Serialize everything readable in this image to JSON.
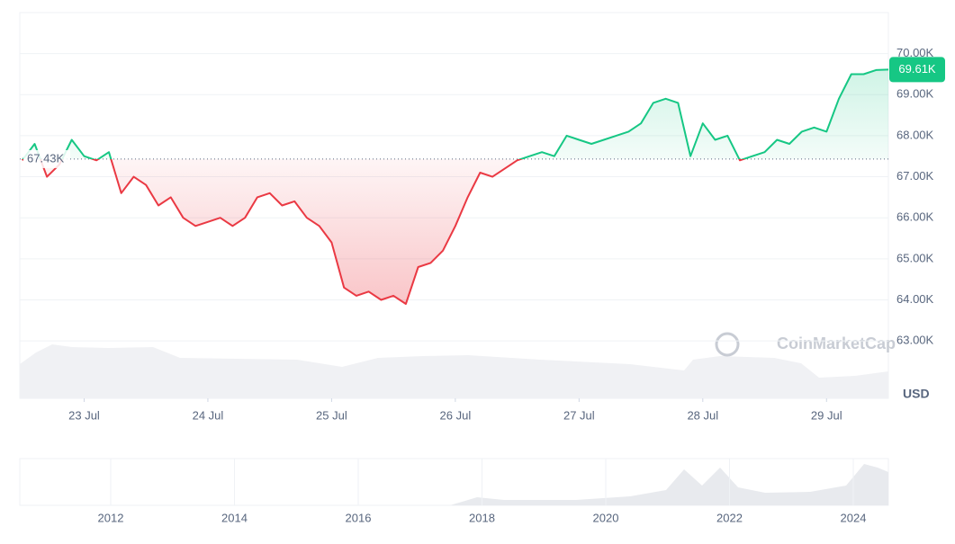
{
  "chart_data": {
    "type": "line",
    "currency": "USD",
    "watermark": "CoinMarketCap",
    "up_color": "#16c784",
    "down_color": "#ea3943",
    "grid": true,
    "baseline": {
      "value": 67430,
      "label": "67.43K"
    },
    "last_price": {
      "value": 69610,
      "label": "69.61K"
    },
    "xlim": [
      22.48,
      29.5
    ],
    "xticks": [
      {
        "value": 23,
        "label": "23 Jul"
      },
      {
        "value": 24,
        "label": "24 Jul"
      },
      {
        "value": 25,
        "label": "25 Jul"
      },
      {
        "value": 26,
        "label": "26 Jul"
      },
      {
        "value": 27,
        "label": "27 Jul"
      },
      {
        "value": 28,
        "label": "28 Jul"
      },
      {
        "value": 29,
        "label": "29 Jul"
      }
    ],
    "ylim": [
      61600,
      71000
    ],
    "yticks": [
      {
        "value": 63000,
        "label": "63.00K"
      },
      {
        "value": 64000,
        "label": "64.00K"
      },
      {
        "value": 65000,
        "label": "65.00K"
      },
      {
        "value": 66000,
        "label": "66.00K"
      },
      {
        "value": 67000,
        "label": "67.00K"
      },
      {
        "value": 68000,
        "label": "68.00K"
      },
      {
        "value": 69000,
        "label": "69.00K"
      },
      {
        "value": 70000,
        "label": "70.00K"
      }
    ],
    "x": [
      22.5,
      22.6,
      22.7,
      22.8,
      22.9,
      23.0,
      23.1,
      23.2,
      23.3,
      23.4,
      23.5,
      23.6,
      23.7,
      23.8,
      23.9,
      24.0,
      24.1,
      24.2,
      24.3,
      24.4,
      24.5,
      24.6,
      24.7,
      24.8,
      24.9,
      25.0,
      25.1,
      25.2,
      25.3,
      25.4,
      25.5,
      25.6,
      25.7,
      25.8,
      25.9,
      26.0,
      26.1,
      26.2,
      26.3,
      26.4,
      26.5,
      26.6,
      26.7,
      26.8,
      26.9,
      27.0,
      27.1,
      27.2,
      27.3,
      27.4,
      27.5,
      27.6,
      27.7,
      27.8,
      27.9,
      28.0,
      28.1,
      28.2,
      28.3,
      28.4,
      28.5,
      28.6,
      28.7,
      28.8,
      28.9,
      29.0,
      29.1,
      29.2,
      29.3,
      29.4,
      29.5
    ],
    "values": [
      67400,
      67800,
      67000,
      67300,
      67900,
      67500,
      67400,
      67600,
      66600,
      67000,
      66800,
      66300,
      66500,
      66000,
      65800,
      65900,
      66000,
      65800,
      66000,
      66500,
      66600,
      66300,
      66400,
      66000,
      65800,
      65400,
      64300,
      64100,
      64200,
      64000,
      64100,
      63900,
      64800,
      64900,
      65200,
      65800,
      66500,
      67100,
      67000,
      67200,
      67400,
      67500,
      67600,
      67500,
      68000,
      67900,
      67800,
      67900,
      68000,
      68100,
      68300,
      68800,
      68900,
      68800,
      67500,
      68300,
      67900,
      68000,
      67400,
      67500,
      67600,
      67900,
      67800,
      68100,
      68200,
      68100,
      68900,
      69500,
      69500,
      69600,
      69610
    ],
    "navigator_ticks": [
      "2012",
      "2014",
      "2016",
      "2018",
      "2020",
      "2022",
      "2024"
    ]
  }
}
